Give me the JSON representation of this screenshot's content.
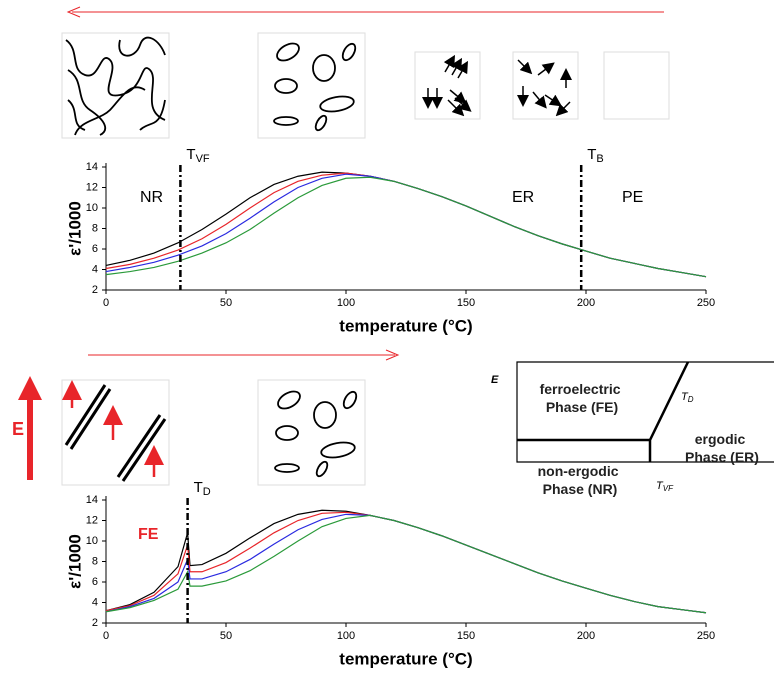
{
  "chart_data": [
    {
      "type": "line",
      "x_label": "temperature (°C)",
      "y_label": "ε'/1000",
      "x": [
        0,
        10,
        20,
        30,
        40,
        50,
        60,
        70,
        80,
        90,
        100,
        110,
        120,
        130,
        140,
        150,
        160,
        170,
        180,
        190,
        200,
        210,
        220,
        230,
        240,
        250
      ],
      "series": [
        {
          "color": "#000000",
          "values": [
            4.4,
            4.9,
            5.6,
            6.6,
            7.9,
            9.4,
            11.0,
            12.3,
            13.1,
            13.5,
            13.4,
            13.1,
            12.6,
            11.9,
            11.1,
            10.2,
            9.2,
            8.2,
            7.3,
            6.5,
            5.8,
            5.1,
            4.6,
            4.1,
            3.7,
            3.3
          ]
        },
        {
          "color": "#e8252a",
          "values": [
            4.1,
            4.5,
            5.1,
            5.9,
            7.0,
            8.4,
            10.0,
            11.5,
            12.6,
            13.2,
            13.4,
            13.1,
            12.6,
            11.9,
            11.1,
            10.2,
            9.2,
            8.2,
            7.3,
            6.5,
            5.8,
            5.1,
            4.6,
            4.1,
            3.7,
            3.3
          ]
        },
        {
          "color": "#2a2ae0",
          "values": [
            3.8,
            4.2,
            4.7,
            5.4,
            6.3,
            7.5,
            9.0,
            10.6,
            12.0,
            12.9,
            13.3,
            13.1,
            12.6,
            11.9,
            11.1,
            10.2,
            9.2,
            8.2,
            7.3,
            6.5,
            5.8,
            5.1,
            4.6,
            4.1,
            3.7,
            3.3
          ]
        },
        {
          "color": "#2a9a3a",
          "values": [
            3.5,
            3.8,
            4.2,
            4.8,
            5.6,
            6.6,
            7.9,
            9.5,
            11.0,
            12.2,
            12.9,
            13.0,
            12.6,
            11.9,
            11.1,
            10.2,
            9.2,
            8.2,
            7.3,
            6.5,
            5.8,
            5.1,
            4.6,
            4.1,
            3.7,
            3.3
          ]
        }
      ],
      "xlim": [
        0,
        250
      ],
      "xticks": [
        0,
        50,
        100,
        150,
        200,
        250
      ],
      "ylim": [
        2,
        14
      ],
      "yticks": [
        2,
        4,
        6,
        8,
        10,
        12,
        14
      ],
      "vlines": [
        {
          "x": 31,
          "label": "T",
          "sub": "VF"
        },
        {
          "x": 198,
          "label": "T",
          "sub": "B"
        }
      ],
      "annotations": [
        {
          "text": "NR",
          "color": "#000000"
        },
        {
          "text": "ER",
          "color": "#000000"
        },
        {
          "text": "PE",
          "color": "#000000"
        }
      ]
    },
    {
      "type": "line",
      "x_label": "temperature (°C)",
      "y_label": "ε'/1000",
      "x": [
        0,
        10,
        20,
        30,
        34,
        35,
        40,
        50,
        60,
        70,
        80,
        90,
        100,
        110,
        120,
        130,
        140,
        150,
        160,
        170,
        180,
        190,
        200,
        210,
        220,
        230,
        240,
        250
      ],
      "series": [
        {
          "color": "#000000",
          "values": [
            3.2,
            3.8,
            5.0,
            7.5,
            10.8,
            7.6,
            7.7,
            8.8,
            10.3,
            11.7,
            12.6,
            13.0,
            12.9,
            12.5,
            12.0,
            11.3,
            10.5,
            9.6,
            8.7,
            7.8,
            6.9,
            6.1,
            5.4,
            4.7,
            4.1,
            3.6,
            3.3,
            3.0
          ]
        },
        {
          "color": "#e8252a",
          "values": [
            3.2,
            3.7,
            4.7,
            6.8,
            9.6,
            7.0,
            7.0,
            7.9,
            9.3,
            10.8,
            12.0,
            12.7,
            12.8,
            12.5,
            12.0,
            11.3,
            10.5,
            9.6,
            8.7,
            7.8,
            6.9,
            6.1,
            5.4,
            4.7,
            4.1,
            3.6,
            3.3,
            3.0
          ]
        },
        {
          "color": "#2a2ae0",
          "values": [
            3.1,
            3.6,
            4.4,
            6.0,
            8.2,
            6.3,
            6.3,
            7.0,
            8.2,
            9.7,
            11.1,
            12.1,
            12.6,
            12.5,
            12.0,
            11.3,
            10.5,
            9.6,
            8.7,
            7.8,
            6.9,
            6.1,
            5.4,
            4.7,
            4.1,
            3.6,
            3.3,
            3.0
          ]
        },
        {
          "color": "#2a9a3a",
          "values": [
            3.1,
            3.5,
            4.2,
            5.3,
            7.0,
            5.6,
            5.6,
            6.1,
            7.1,
            8.5,
            10.0,
            11.4,
            12.2,
            12.5,
            12.0,
            11.3,
            10.5,
            9.6,
            8.7,
            7.8,
            6.9,
            6.1,
            5.4,
            4.7,
            4.1,
            3.6,
            3.3,
            3.0
          ]
        }
      ],
      "xlim": [
        0,
        250
      ],
      "xticks": [
        0,
        50,
        100,
        150,
        200,
        250
      ],
      "ylim": [
        2,
        14
      ],
      "yticks": [
        2,
        4,
        6,
        8,
        10,
        12,
        14
      ],
      "vlines": [
        {
          "x": 34,
          "label": "T",
          "sub": "D"
        }
      ],
      "annotations": [
        {
          "text": "FE",
          "color": "#e8252a"
        }
      ]
    }
  ],
  "field_label": "E",
  "phase_diagram": {
    "axis_label": "E",
    "regions": [
      [
        "ferroelectric",
        "Phase (FE)"
      ],
      [
        "non-ergodic",
        "Phase (NR)"
      ],
      [
        "ergodic",
        "Phase (ER)"
      ]
    ],
    "boundaries": [
      {
        "label": "T",
        "sub": "D"
      },
      {
        "label": "T",
        "sub": "VF"
      }
    ]
  }
}
